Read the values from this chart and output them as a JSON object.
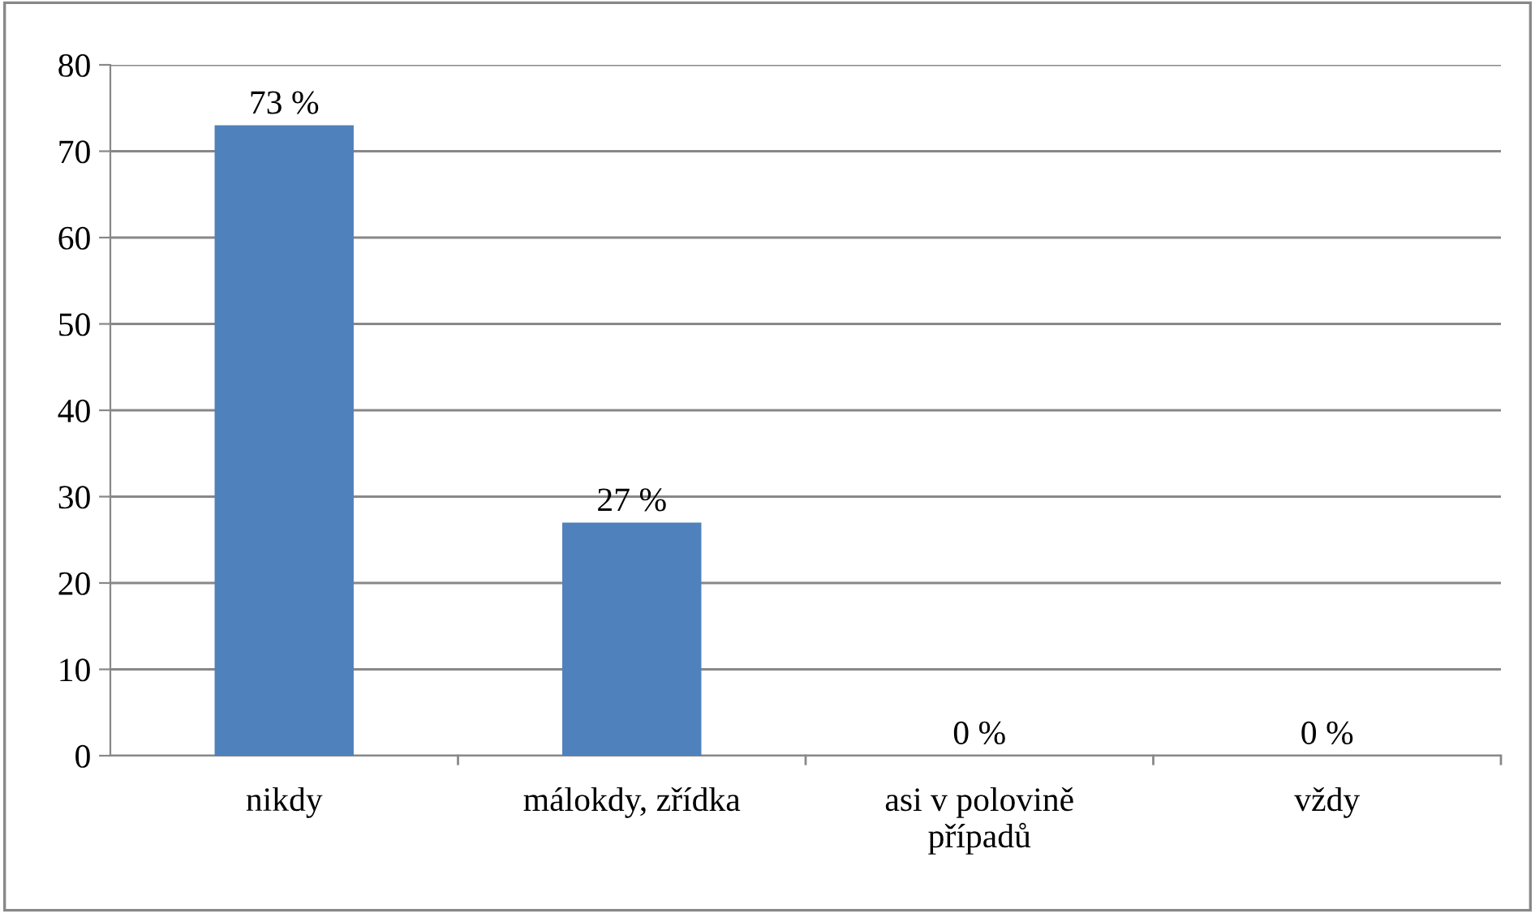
{
  "chart_data": {
    "type": "bar",
    "categories": [
      "nikdy",
      "málokdy, zřídka",
      "asi v polovině\npřípadů",
      "vždy"
    ],
    "values": [
      73,
      27,
      0,
      0
    ],
    "color": "#4f81bd",
    "value_labels": [
      "73 %",
      "27 %",
      "0 %",
      "0 %"
    ],
    "ylim": [
      0,
      80
    ],
    "yticks": [
      0,
      10,
      20,
      30,
      40,
      50,
      60,
      70,
      80
    ],
    "grid": "y",
    "legend": false
  }
}
